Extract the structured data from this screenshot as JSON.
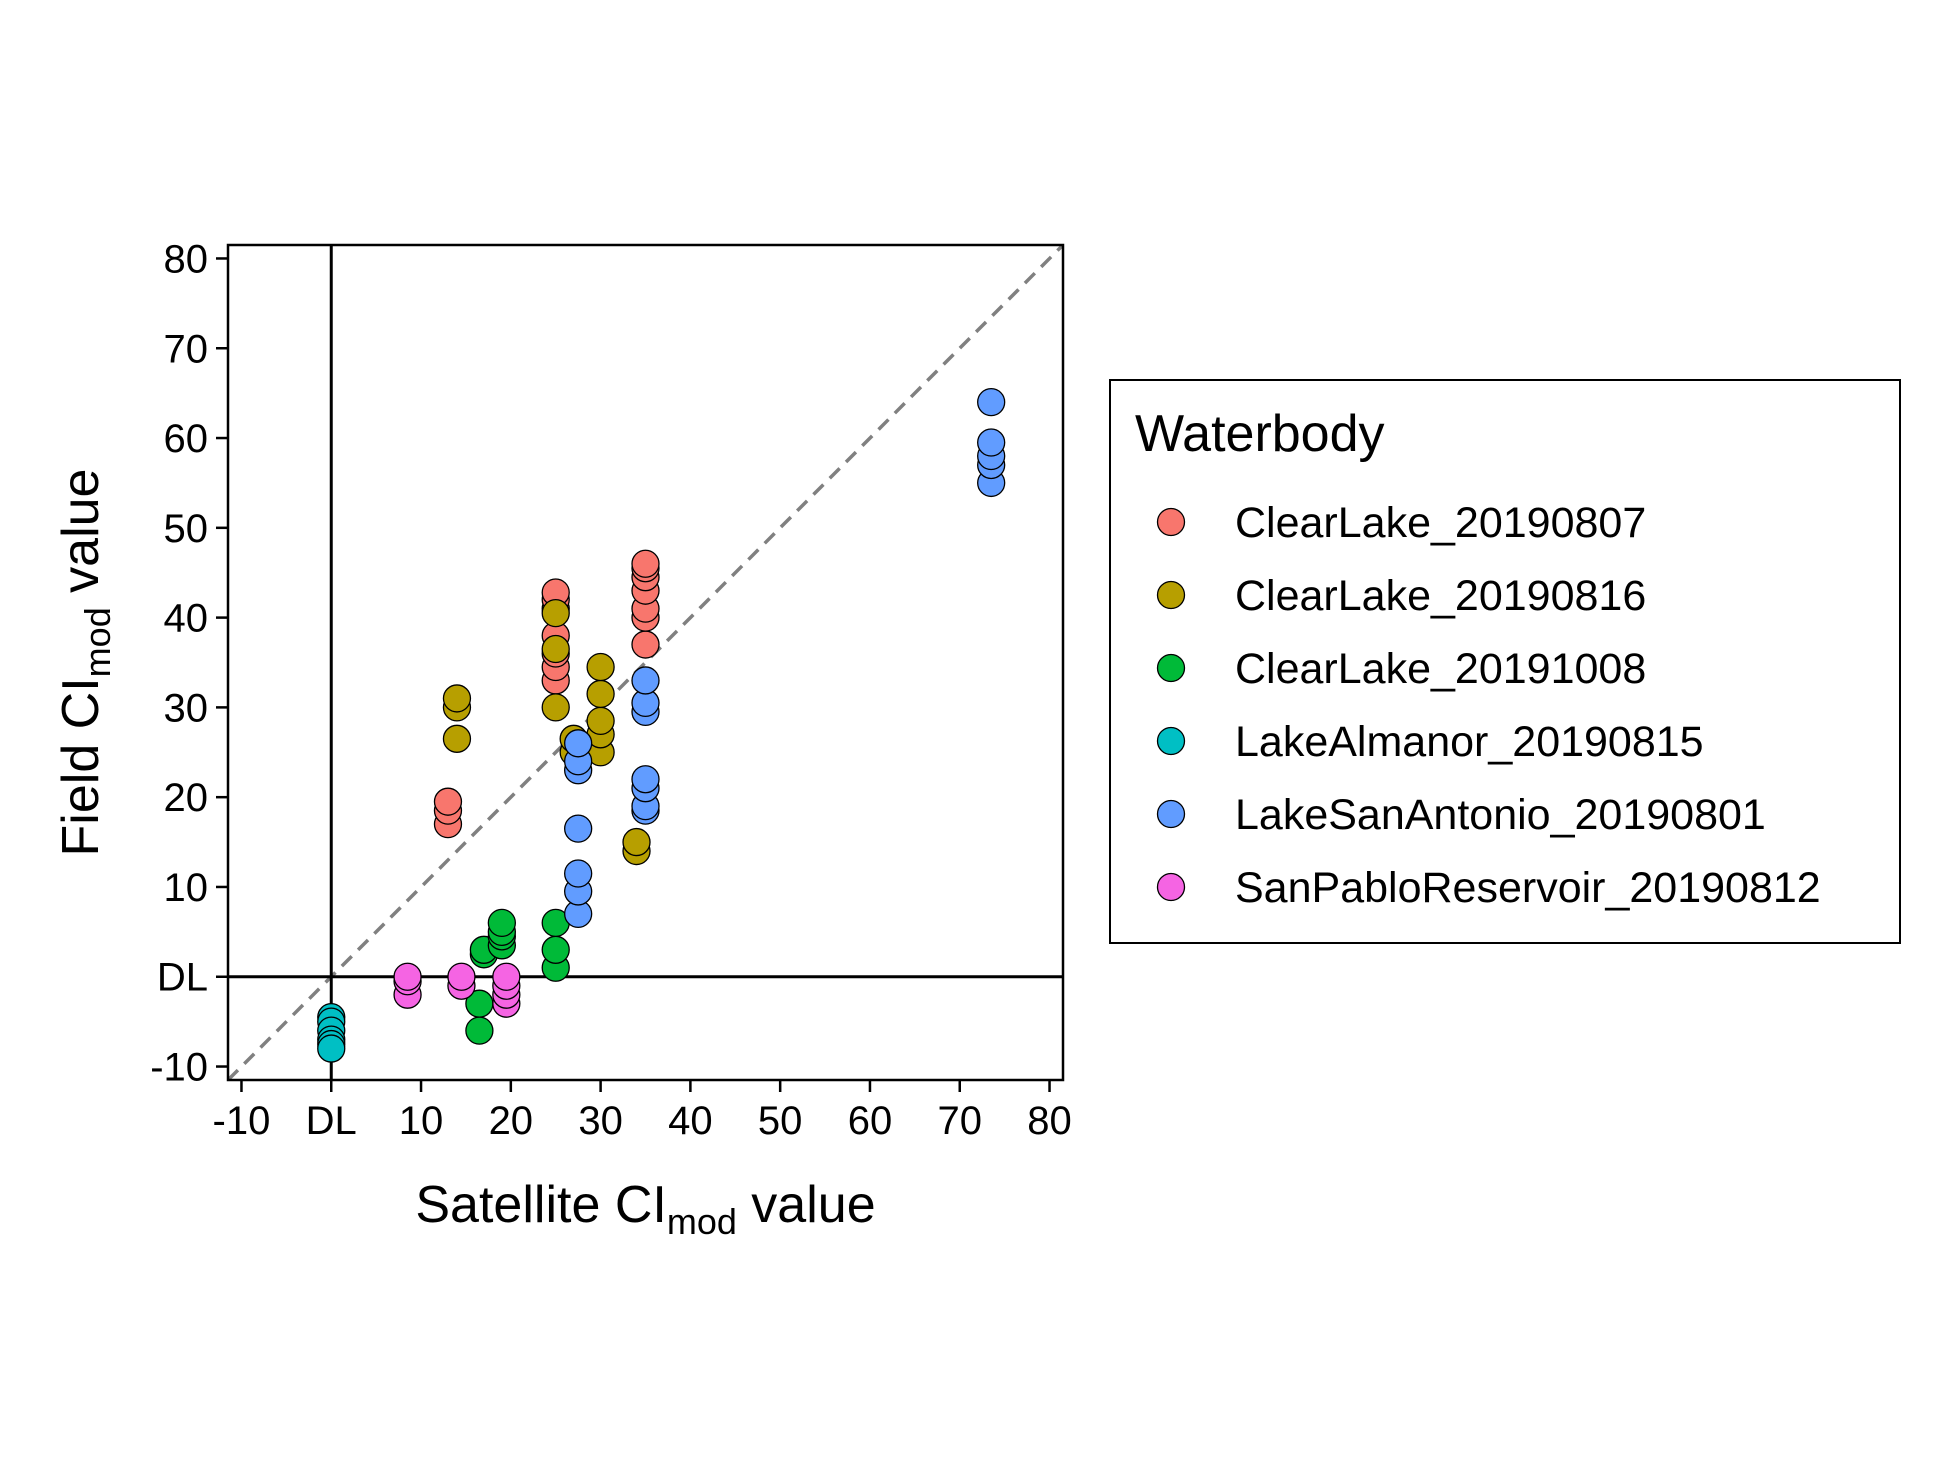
{
  "chart_data": {
    "type": "scatter",
    "xlabel": {
      "main": "Satellite CI",
      "sub": "mod",
      "suffix": " value"
    },
    "ylabel": {
      "main": "Field CI",
      "sub": "mod",
      "suffix": " value"
    },
    "xlim": [
      -11.5,
      81.5
    ],
    "ylim": [
      -11.5,
      81.5
    ],
    "x_ticks": [
      {
        "value": -10,
        "label": "-10"
      },
      {
        "value": 0,
        "label": "DL"
      },
      {
        "value": 10,
        "label": "10"
      },
      {
        "value": 20,
        "label": "20"
      },
      {
        "value": 30,
        "label": "30"
      },
      {
        "value": 40,
        "label": "40"
      },
      {
        "value": 50,
        "label": "50"
      },
      {
        "value": 60,
        "label": "60"
      },
      {
        "value": 70,
        "label": "70"
      },
      {
        "value": 80,
        "label": "80"
      }
    ],
    "y_ticks": [
      {
        "value": -10,
        "label": "-10"
      },
      {
        "value": 0,
        "label": "DL"
      },
      {
        "value": 10,
        "label": "10"
      },
      {
        "value": 20,
        "label": "20"
      },
      {
        "value": 30,
        "label": "30"
      },
      {
        "value": 40,
        "label": "40"
      },
      {
        "value": 50,
        "label": "50"
      },
      {
        "value": 60,
        "label": "60"
      },
      {
        "value": 70,
        "label": "70"
      },
      {
        "value": 80,
        "label": "80"
      }
    ],
    "reference_lines": {
      "x": 0,
      "y": 0,
      "diagonal": "y = x (dashed grey)"
    },
    "grid": false,
    "legend": {
      "title": "Waterbody",
      "position": "right"
    },
    "series": [
      {
        "name": "ClearLake_20190807",
        "color": "#F8766D",
        "points": [
          [
            13,
            17
          ],
          [
            13,
            18.5
          ],
          [
            13,
            19.5
          ],
          [
            25,
            33
          ],
          [
            25,
            34.5
          ],
          [
            25,
            36
          ],
          [
            25,
            38
          ],
          [
            25,
            41
          ],
          [
            25,
            42
          ],
          [
            25,
            42.8
          ],
          [
            35,
            37
          ],
          [
            35,
            40
          ],
          [
            35,
            41
          ],
          [
            35,
            43
          ],
          [
            35,
            44.5
          ],
          [
            35,
            45.5
          ],
          [
            35,
            46
          ]
        ]
      },
      {
        "name": "ClearLake_20190816",
        "color": "#B79F00",
        "points": [
          [
            14,
            26.5
          ],
          [
            14,
            30
          ],
          [
            14,
            31
          ],
          [
            25,
            30
          ],
          [
            25,
            36.5
          ],
          [
            25,
            40.5
          ],
          [
            27,
            25
          ],
          [
            27,
            26.5
          ],
          [
            30,
            25
          ],
          [
            30,
            27
          ],
          [
            30,
            28.5
          ],
          [
            30,
            31.5
          ],
          [
            30,
            34.5
          ],
          [
            34,
            14
          ],
          [
            34,
            15
          ]
        ]
      },
      {
        "name": "ClearLake_20191008",
        "color": "#00BA38",
        "points": [
          [
            16.5,
            -3
          ],
          [
            16.5,
            -6
          ],
          [
            17,
            2.5
          ],
          [
            17,
            3
          ],
          [
            19,
            3.5
          ],
          [
            19,
            4.5
          ],
          [
            19,
            5
          ],
          [
            19,
            6
          ],
          [
            25,
            1
          ],
          [
            25,
            3
          ],
          [
            25,
            6
          ]
        ]
      },
      {
        "name": "LakeAlmanor_20190815",
        "color": "#00BFC4",
        "points": [
          [
            0,
            -4.5
          ],
          [
            0,
            -5
          ],
          [
            0,
            -6
          ],
          [
            0,
            -7
          ],
          [
            0,
            -7.5
          ],
          [
            0,
            -8
          ]
        ]
      },
      {
        "name": "LakeSanAntonio_20190801",
        "color": "#619CFF",
        "points": [
          [
            27.5,
            7
          ],
          [
            27.5,
            9.5
          ],
          [
            27.5,
            11.5
          ],
          [
            27.5,
            16.5
          ],
          [
            27.5,
            23
          ],
          [
            27.5,
            24
          ],
          [
            27.5,
            26
          ],
          [
            35,
            18.5
          ],
          [
            35,
            19
          ],
          [
            35,
            21
          ],
          [
            35,
            22
          ],
          [
            35,
            29.5
          ],
          [
            35,
            30.5
          ],
          [
            35,
            33
          ],
          [
            73.5,
            55
          ],
          [
            73.5,
            57
          ],
          [
            73.5,
            58
          ],
          [
            73.5,
            59.5
          ],
          [
            73.5,
            64
          ]
        ]
      },
      {
        "name": "SanPabloReservoir_20190812",
        "color": "#F564E3",
        "points": [
          [
            8.5,
            -2
          ],
          [
            8.5,
            -0.5
          ],
          [
            8.5,
            0
          ],
          [
            14.5,
            -1
          ],
          [
            14.5,
            0
          ],
          [
            19.5,
            -3
          ],
          [
            19.5,
            -2
          ],
          [
            19.5,
            -1
          ],
          [
            19.5,
            0
          ]
        ]
      }
    ]
  }
}
